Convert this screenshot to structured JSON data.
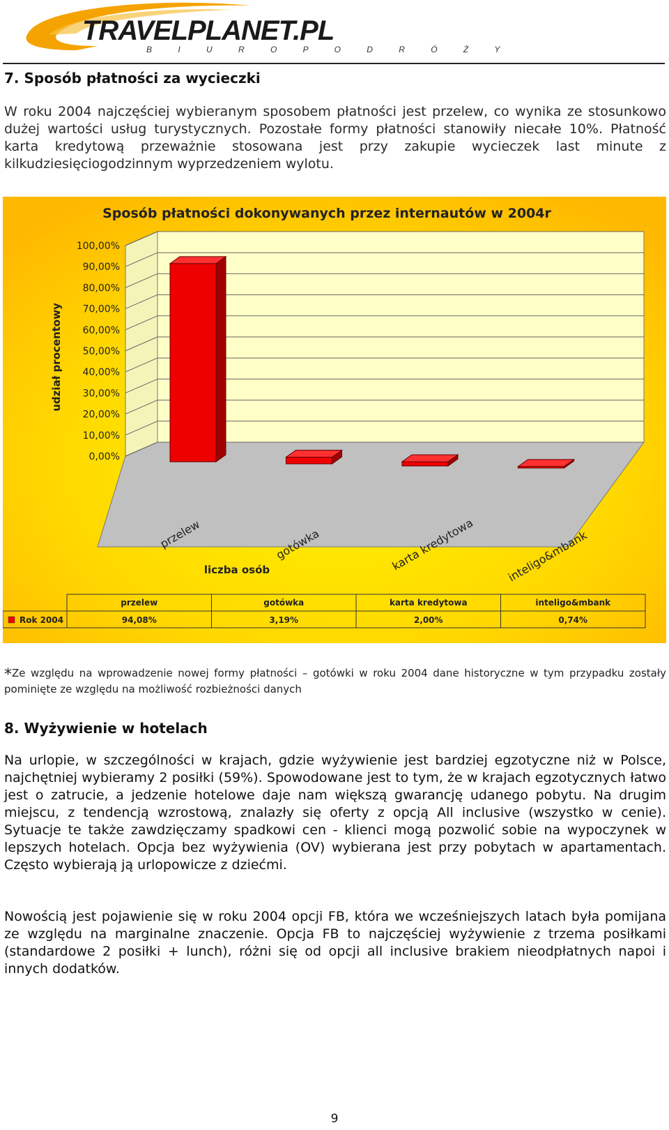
{
  "logo": {
    "name": "TRAVELPLANET.PL",
    "tagline": "B I U R O   P O D R Ó Ż Y",
    "colors": {
      "swoosh": "#f5a300",
      "text": "#1a1a1a"
    }
  },
  "section7": {
    "heading": "7. Sposób płatności za wycieczki",
    "paragraph": "W roku 2004 najczęściej wybieranym sposobem płatności jest przelew, co wynika ze stosunkowo dużej wartości usług turystycznych. Pozostałe formy płatności stanowiły niecałe 10%. Płatność karta kredytową przeważnie stosowana jest przy zakupie wycieczek last minute z kilkudziesięciogodzinnym wyprzedzeniem wylotu."
  },
  "chart_data": {
    "type": "bar",
    "title": "Sposób płatności dokonywanych przez internautów w 2004r",
    "ylabel": "udział procentowy",
    "xlabel": "liczba osób",
    "ylim": [
      0,
      100
    ],
    "y_ticks": [
      "100,00%",
      "90,00%",
      "80,00%",
      "70,00%",
      "60,00%",
      "50,00%",
      "40,00%",
      "30,00%",
      "20,00%",
      "10,00%",
      "0,00%"
    ],
    "categories": [
      "przelew",
      "gotówka",
      "karta kredytowa",
      "inteligo&mbank"
    ],
    "series": [
      {
        "name": "Rok 2004",
        "values": [
          94.08,
          3.19,
          2.0,
          0.74
        ],
        "labels": [
          "94,08%",
          "3,19%",
          "2,00%",
          "0,74%"
        ],
        "color": "#ee0000"
      }
    ],
    "colors": {
      "background": "#ffd400",
      "plot_wall": "#ffffc8",
      "floor": "#c0c0c0"
    }
  },
  "note": {
    "asterisk": "*",
    "text": "Ze względu na wprowadzenie nowej formy płatności – gotówki w roku 2004 dane historyczne w tym przypadku zostały pominięte ze względu na możliwość rozbieżności danych"
  },
  "section8": {
    "heading": "8. Wyżywienie w hotelach",
    "paragraph1": "Na urlopie, w szczególności w krajach, gdzie wyżywienie jest bardziej egzotyczne niż w Polsce, najchętniej wybieramy 2 posiłki (59%). Spowodowane jest to tym, że w krajach egzotycznych łatwo jest o zatrucie, a jedzenie hotelowe daje nam większą gwarancję udanego pobytu. Na drugim miejscu, z tendencją wzrostową, znalazły się oferty z opcją All inclusive (wszystko w cenie). Sytuacje te także zawdzięczamy spadkowi cen - klienci mogą pozwolić sobie na wypoczynek w lepszych hotelach. Opcja bez wyżywienia (OV) wybierana jest przy pobytach w apartamentach. Często wybierają ją urlopowicze z dziećmi.",
    "paragraph2": "Nowością jest pojawienie się w roku 2004 opcji FB, która we wcześniejszych latach była pomijana ze względu na marginalne znaczenie. Opcja FB to najczęściej wyżywienie z trzema posiłkami (standardowe 2 posiłki + lunch), różni się od opcji all inclusive brakiem nieodpłatnych napoi i innych dodatków."
  },
  "page_number": "9"
}
